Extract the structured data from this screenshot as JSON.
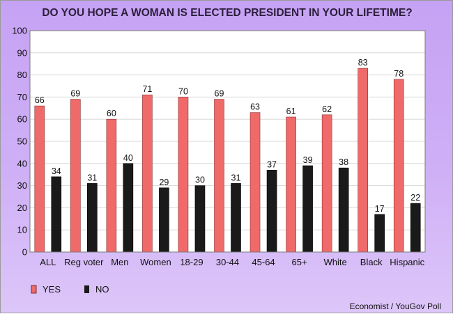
{
  "colors": {
    "yes": "#f06a6a",
    "no": "#1a1a1a",
    "plot_background": "#ffffff",
    "gridline": "#d8d8d8"
  },
  "chart_data": {
    "type": "bar",
    "title": "DO YOU HOPE A WOMAN IS ELECTED PRESIDENT IN YOUR LIFETIME?",
    "categories": [
      "ALL",
      "Reg voter",
      "Men",
      "Women",
      "18-29",
      "30-44",
      "45-64",
      "65+",
      "White",
      "Black",
      "Hispanic"
    ],
    "series": [
      {
        "name": "YES",
        "values": [
          66,
          69,
          60,
          71,
          70,
          69,
          63,
          61,
          62,
          83,
          78
        ]
      },
      {
        "name": "NO",
        "values": [
          34,
          31,
          40,
          29,
          30,
          31,
          37,
          39,
          38,
          17,
          22
        ]
      }
    ],
    "ylim": [
      0,
      100
    ],
    "yticks": [
      0,
      10,
      20,
      30,
      40,
      50,
      60,
      70,
      80,
      90,
      100
    ],
    "grid": true,
    "legend_position": "bottom-left",
    "source": "Economist / YouGov Poll"
  }
}
